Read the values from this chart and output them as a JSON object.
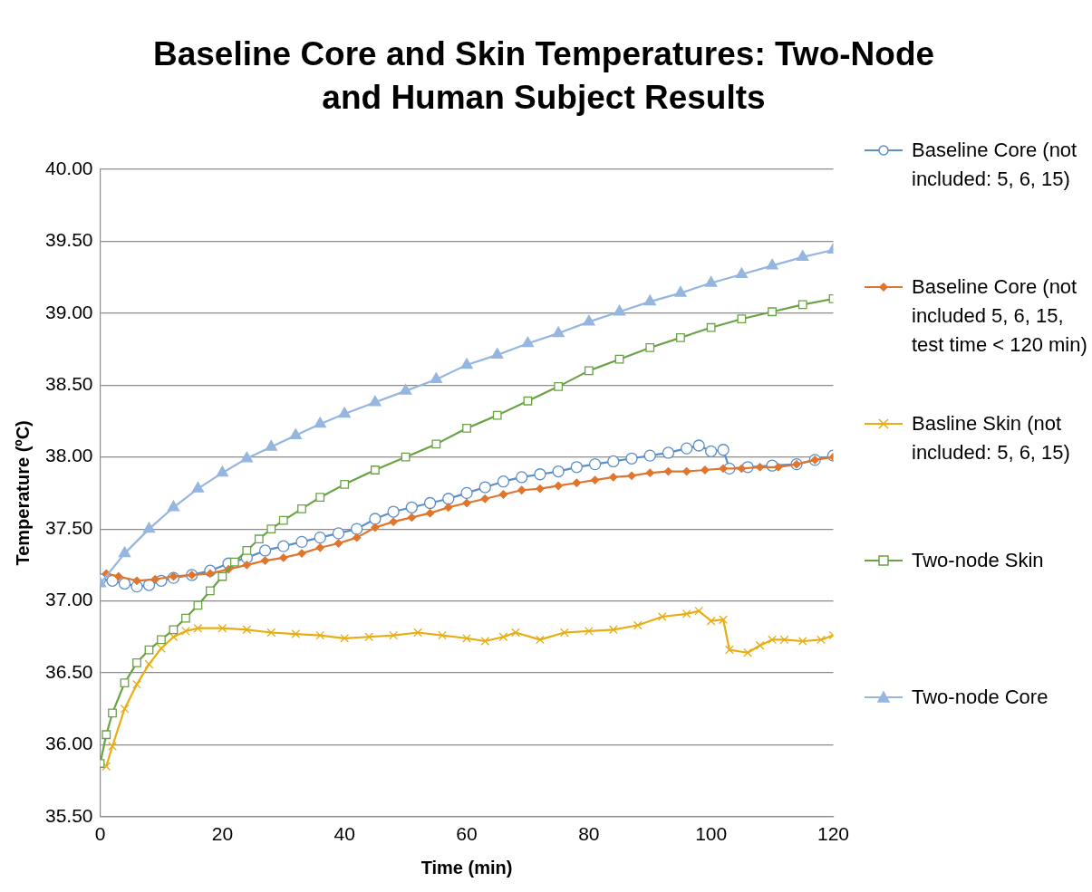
{
  "chart_data": {
    "type": "line",
    "title": "Baseline Core and Skin Temperatures: Two-Node and Human Subject Results",
    "xlabel": "Time (min)",
    "ylabel": "Temperature (ºC)",
    "xlim": [
      0,
      120
    ],
    "xticks": [
      0,
      20,
      40,
      60,
      80,
      100,
      120
    ],
    "ylim": [
      35.5,
      40
    ],
    "yticks": [
      {
        "value": 35.5,
        "label": "35.50"
      },
      {
        "value": 36,
        "label": "36.00"
      },
      {
        "value": 36.5,
        "label": "36.50"
      },
      {
        "value": 37,
        "label": "37.00"
      },
      {
        "value": 37.5,
        "label": "37.50"
      },
      {
        "value": 38,
        "label": "38.00"
      },
      {
        "value": 38.5,
        "label": "38.50"
      },
      {
        "value": 39,
        "label": "39.00"
      },
      {
        "value": 39.5,
        "label": "39.50"
      },
      {
        "value": 40,
        "label": "40.00"
      }
    ],
    "grid": "y",
    "legend": "right",
    "line_style": "solid",
    "series": [
      {
        "name": "Baseline Core (not included: 5, 6, 15)",
        "color": "#5b8fc9",
        "marker": "circle",
        "x": [
          0,
          2,
          4,
          6,
          8,
          10,
          12,
          15,
          18,
          21,
          24,
          27,
          30,
          33,
          36,
          39,
          42,
          45,
          48,
          51,
          54,
          57,
          60,
          63,
          66,
          69,
          72,
          75,
          78,
          81,
          84,
          87,
          90,
          93,
          96,
          98,
          100,
          102,
          103,
          106,
          110,
          114,
          117,
          120
        ],
        "values": [
          37.15,
          37.14,
          37.12,
          37.1,
          37.11,
          37.14,
          37.16,
          37.18,
          37.21,
          37.26,
          37.3,
          37.35,
          37.38,
          37.41,
          37.44,
          37.47,
          37.5,
          37.57,
          37.62,
          37.65,
          37.68,
          37.71,
          37.75,
          37.79,
          37.83,
          37.86,
          37.88,
          37.9,
          37.93,
          37.95,
          37.97,
          37.99,
          38.01,
          38.03,
          38.06,
          38.08,
          38.04,
          38.05,
          37.92,
          37.93,
          37.94,
          37.95,
          37.98,
          38.01
        ]
      },
      {
        "name": "Baseline Core (not included 5, 6, 15, test time < 120 min)",
        "color": "#e0752e",
        "marker": "diamond",
        "x": [
          1,
          3,
          6,
          9,
          12,
          15,
          18,
          21,
          24,
          27,
          30,
          33,
          36,
          39,
          42,
          45,
          48,
          51,
          54,
          57,
          60,
          63,
          66,
          69,
          72,
          75,
          78,
          81,
          84,
          87,
          90,
          93,
          96,
          99,
          102,
          105,
          108,
          111,
          114,
          117,
          120
        ],
        "values": [
          37.19,
          37.17,
          37.14,
          37.15,
          37.17,
          37.18,
          37.19,
          37.22,
          37.25,
          37.28,
          37.3,
          37.33,
          37.37,
          37.4,
          37.44,
          37.51,
          37.55,
          37.58,
          37.61,
          37.65,
          37.68,
          37.71,
          37.74,
          37.77,
          37.78,
          37.8,
          37.82,
          37.84,
          37.86,
          37.87,
          37.89,
          37.9,
          37.9,
          37.91,
          37.92,
          37.92,
          37.93,
          37.93,
          37.95,
          37.98,
          38
        ]
      },
      {
        "name": "Basline Skin (not included: 5, 6, 15)",
        "color": "#e8ad12",
        "marker": "cross",
        "x": [
          1,
          2,
          4,
          6,
          8,
          10,
          12,
          14,
          16,
          20,
          24,
          28,
          32,
          36,
          40,
          44,
          48,
          52,
          56,
          60,
          63,
          66,
          68,
          72,
          76,
          80,
          84,
          88,
          92,
          96,
          98,
          100,
          102,
          103,
          106,
          108,
          110,
          112,
          115,
          118,
          120
        ],
        "values": [
          35.85,
          35.99,
          36.25,
          36.42,
          36.56,
          36.67,
          36.75,
          36.79,
          36.81,
          36.81,
          36.8,
          36.78,
          36.77,
          36.76,
          36.74,
          36.75,
          36.76,
          36.78,
          36.76,
          36.74,
          36.72,
          36.75,
          36.78,
          36.73,
          36.78,
          36.79,
          36.8,
          36.83,
          36.89,
          36.91,
          36.93,
          36.86,
          36.87,
          36.66,
          36.64,
          36.69,
          36.73,
          36.73,
          36.72,
          36.73,
          36.76
        ]
      },
      {
        "name": "Two-node Skin",
        "color": "#6aa245",
        "marker": "square",
        "x": [
          0,
          1,
          2,
          4,
          6,
          8,
          10,
          12,
          14,
          16,
          18,
          20,
          22,
          24,
          26,
          28,
          30,
          33,
          36,
          40,
          45,
          50,
          55,
          60,
          65,
          70,
          75,
          80,
          85,
          90,
          95,
          100,
          105,
          110,
          115,
          120
        ],
        "values": [
          35.87,
          36.07,
          36.22,
          36.43,
          36.57,
          36.66,
          36.73,
          36.8,
          36.88,
          36.97,
          37.07,
          37.17,
          37.27,
          37.35,
          37.43,
          37.5,
          37.56,
          37.64,
          37.72,
          37.81,
          37.91,
          38,
          38.09,
          38.2,
          38.29,
          38.39,
          38.49,
          38.6,
          38.68,
          38.76,
          38.83,
          38.9,
          38.96,
          39.01,
          39.06,
          39.1
        ]
      },
      {
        "name": "Two-node Core",
        "color": "#95b6df",
        "marker": "triangle",
        "x": [
          0,
          4,
          8,
          12,
          16,
          20,
          24,
          28,
          32,
          36,
          40,
          45,
          50,
          55,
          60,
          65,
          70,
          75,
          80,
          85,
          90,
          95,
          100,
          105,
          110,
          115,
          120
        ],
        "values": [
          37.12,
          37.33,
          37.5,
          37.65,
          37.78,
          37.89,
          37.99,
          38.07,
          38.15,
          38.23,
          38.3,
          38.38,
          38.46,
          38.54,
          38.64,
          38.71,
          38.79,
          38.86,
          38.94,
          39.01,
          39.08,
          39.14,
          39.21,
          39.27,
          39.33,
          39.39,
          39.44
        ]
      }
    ]
  }
}
